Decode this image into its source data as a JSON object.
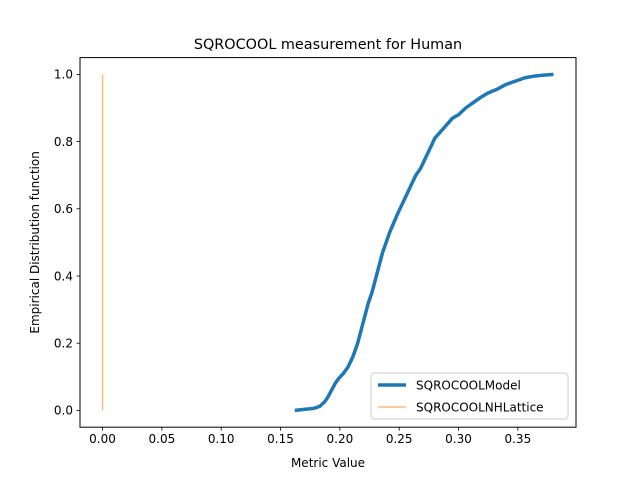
{
  "chart_data": {
    "type": "line",
    "title": "SQROCOOL measurement for Human",
    "xlabel": "Metric Value",
    "ylabel": "Empirical Distribution function",
    "xlim": [
      -0.019,
      0.399
    ],
    "ylim": [
      -0.05,
      1.05
    ],
    "xticks": [
      0.0,
      0.05,
      0.1,
      0.15,
      0.2,
      0.25,
      0.3,
      0.35
    ],
    "xtick_labels": [
      "0.00",
      "0.05",
      "0.10",
      "0.15",
      "0.20",
      "0.25",
      "0.30",
      "0.35"
    ],
    "yticks": [
      0.0,
      0.2,
      0.4,
      0.6,
      0.8,
      1.0
    ],
    "ytick_labels": [
      "0.0",
      "0.2",
      "0.4",
      "0.6",
      "0.8",
      "1.0"
    ],
    "grid": false,
    "legend_position": "lower right",
    "series": [
      {
        "name": "SQROCOOLModel",
        "color": "#1f77b4",
        "x": [
          0.162,
          0.17,
          0.178,
          0.183,
          0.187,
          0.19,
          0.193,
          0.196,
          0.199,
          0.203,
          0.207,
          0.211,
          0.215,
          0.218,
          0.221,
          0.224,
          0.227,
          0.23,
          0.233,
          0.236,
          0.239,
          0.242,
          0.245,
          0.248,
          0.252,
          0.256,
          0.26,
          0.264,
          0.268,
          0.272,
          0.276,
          0.28,
          0.285,
          0.29,
          0.295,
          0.3,
          0.306,
          0.312,
          0.318,
          0.325,
          0.332,
          0.34,
          0.348,
          0.356,
          0.364,
          0.372,
          0.38
        ],
        "y": [
          0.0,
          0.003,
          0.006,
          0.012,
          0.025,
          0.04,
          0.06,
          0.08,
          0.095,
          0.11,
          0.13,
          0.16,
          0.2,
          0.24,
          0.28,
          0.32,
          0.35,
          0.39,
          0.43,
          0.47,
          0.5,
          0.53,
          0.555,
          0.58,
          0.61,
          0.64,
          0.67,
          0.7,
          0.72,
          0.75,
          0.78,
          0.81,
          0.83,
          0.85,
          0.87,
          0.88,
          0.9,
          0.915,
          0.93,
          0.945,
          0.955,
          0.97,
          0.98,
          0.99,
          0.995,
          0.998,
          1.0
        ]
      },
      {
        "name": "SQROCOOLNHLattice",
        "color": "#ffbb78",
        "x": [
          0.0,
          0.0
        ],
        "y": [
          0.0,
          1.0
        ]
      }
    ]
  }
}
